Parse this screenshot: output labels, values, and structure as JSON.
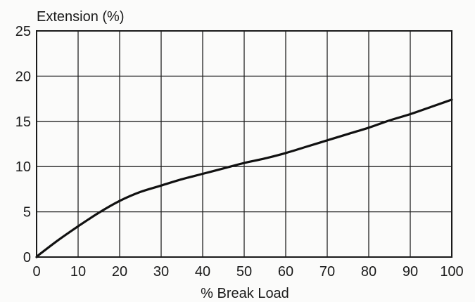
{
  "chart_data": {
    "type": "line",
    "title": "",
    "ylabel": "Extension (%)",
    "xlabel": "% Break Load",
    "xlim": [
      0,
      100
    ],
    "ylim": [
      0,
      25
    ],
    "x_ticks": [
      0,
      10,
      20,
      30,
      40,
      50,
      60,
      70,
      80,
      90,
      100
    ],
    "y_ticks": [
      0,
      5,
      10,
      15,
      20,
      25
    ],
    "grid": true,
    "legend": "none",
    "line_color": "#111111",
    "grid_color": "#222222",
    "series": [
      {
        "x": [
          0,
          1,
          5,
          10,
          15,
          20,
          25,
          30,
          35,
          40,
          45,
          50,
          55,
          60,
          65,
          70,
          75,
          80,
          85,
          90,
          95,
          100
        ],
        "y": [
          0,
          0.4,
          1.8,
          3.4,
          4.9,
          6.2,
          7.2,
          7.9,
          8.6,
          9.2,
          9.8,
          10.4,
          10.9,
          11.5,
          12.2,
          12.9,
          13.6,
          14.3,
          15.1,
          15.8,
          16.6,
          17.4
        ]
      }
    ]
  }
}
